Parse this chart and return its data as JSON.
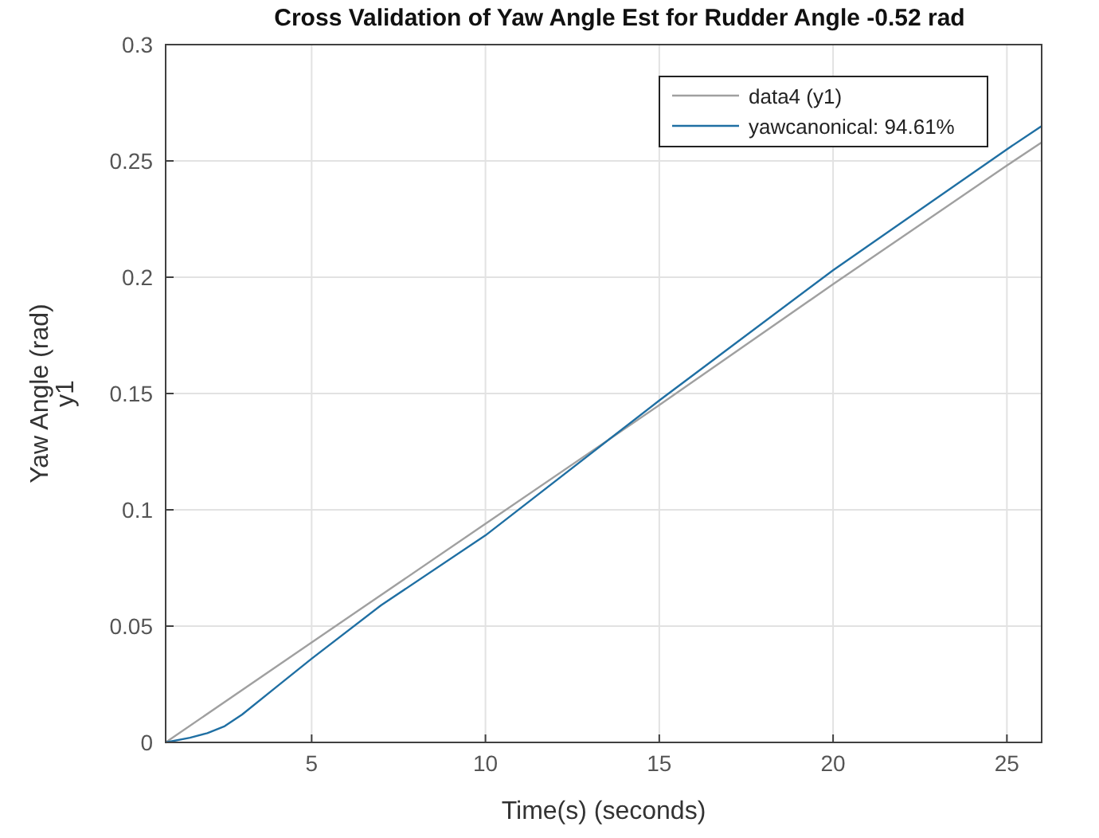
{
  "chart_data": {
    "type": "line",
    "title": "Cross Validation of Yaw Angle Est for Rudder Angle -0.52 rad",
    "xlabel": "Time(s) (seconds)",
    "ylabel": "Yaw Angle (rad)\ny1",
    "x": [
      0.8,
      5,
      10,
      15,
      20,
      25,
      26
    ],
    "series": [
      {
        "name": "data4 (y1)",
        "color": "#a0a0a0",
        "values": [
          0,
          0.043,
          0.094,
          0.145,
          0.197,
          0.248,
          0.258
        ]
      },
      {
        "name": "yawcanonical: 94.61%",
        "color": "#1f6fa3",
        "x": [
          0.8,
          1.5,
          2,
          2.5,
          3,
          4,
          5,
          7,
          10,
          15,
          20,
          25,
          26
        ],
        "values": [
          0,
          0.002,
          0.004,
          0.007,
          0.012,
          0.024,
          0.036,
          0.059,
          0.089,
          0.147,
          0.203,
          0.255,
          0.265
        ]
      }
    ],
    "xlim": [
      0.8,
      26
    ],
    "xticks": [
      5,
      10,
      15,
      20,
      25
    ],
    "ylim": [
      0,
      0.3
    ],
    "yticks": [
      0,
      0.05,
      0.1,
      0.15,
      0.2,
      0.25,
      0.3
    ],
    "grid": true,
    "legend": "top right",
    "marker": "none",
    "line_style": "solid"
  }
}
